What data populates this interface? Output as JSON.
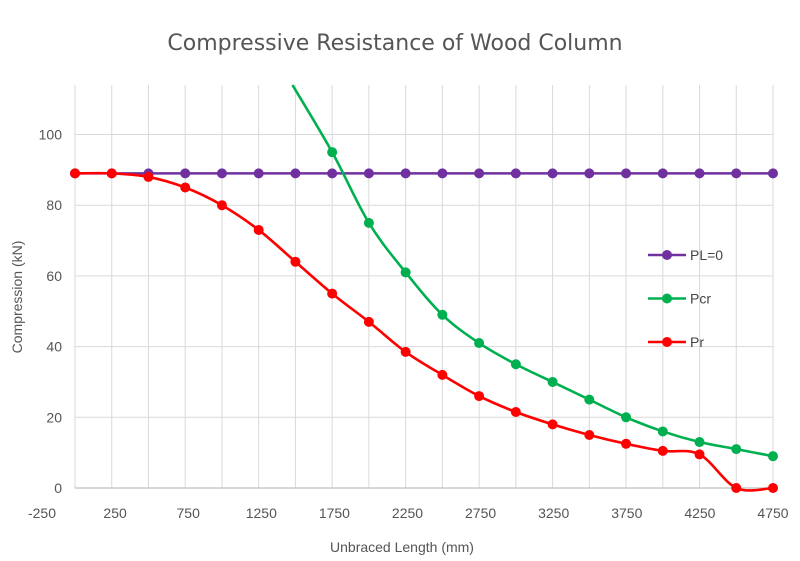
{
  "chart_data": {
    "type": "line",
    "title": "Compressive Resistance of Wood Column",
    "xlabel": "Unbraced Length  (mm)",
    "ylabel": "Compression (kN)",
    "xlim": [
      0,
      4750
    ],
    "ylim": [
      0,
      114
    ],
    "x_tick_labels": [
      "-250",
      "250",
      "750",
      "1250",
      "1750",
      "2250",
      "2750",
      "3250",
      "3750",
      "4250",
      "4750"
    ],
    "y_tick_labels": [
      "0",
      "20",
      "40",
      "60",
      "80",
      "100"
    ],
    "grid": true,
    "legend_position": "right",
    "series": [
      {
        "name": "PL=0",
        "color": "#7030a0",
        "x": [
          0,
          250,
          500,
          750,
          1000,
          1250,
          1500,
          1750,
          2000,
          2250,
          2500,
          2750,
          3000,
          3250,
          3500,
          3750,
          4000,
          4250,
          4500,
          4750
        ],
        "y": [
          89,
          89,
          89,
          89,
          89,
          89,
          89,
          89,
          89,
          89,
          89,
          89,
          89,
          89,
          89,
          89,
          89,
          89,
          89,
          89
        ]
      },
      {
        "name": "Pcr",
        "color": "#00b050",
        "x": [
          1750,
          2000,
          2250,
          2500,
          2750,
          3000,
          3250,
          3500,
          3750,
          4000,
          4250,
          4500,
          4750
        ],
        "y": [
          95,
          75,
          61,
          49,
          41,
          35,
          30,
          25,
          20,
          16,
          13,
          11,
          9
        ],
        "line_start": {
          "x": 1480,
          "y": 114
        }
      },
      {
        "name": "Pr",
        "color": "#ff0000",
        "x": [
          0,
          250,
          500,
          750,
          1000,
          1250,
          1500,
          1750,
          2000,
          2250,
          2500,
          2750,
          3000,
          3250,
          3500,
          3750,
          4000,
          4250,
          4500,
          4750
        ],
        "y": [
          89,
          89,
          88,
          85,
          80,
          73,
          64,
          55,
          47,
          38.5,
          32,
          26,
          21.5,
          18,
          15,
          12.5,
          10.5,
          9.5,
          0,
          0
        ]
      }
    ]
  }
}
